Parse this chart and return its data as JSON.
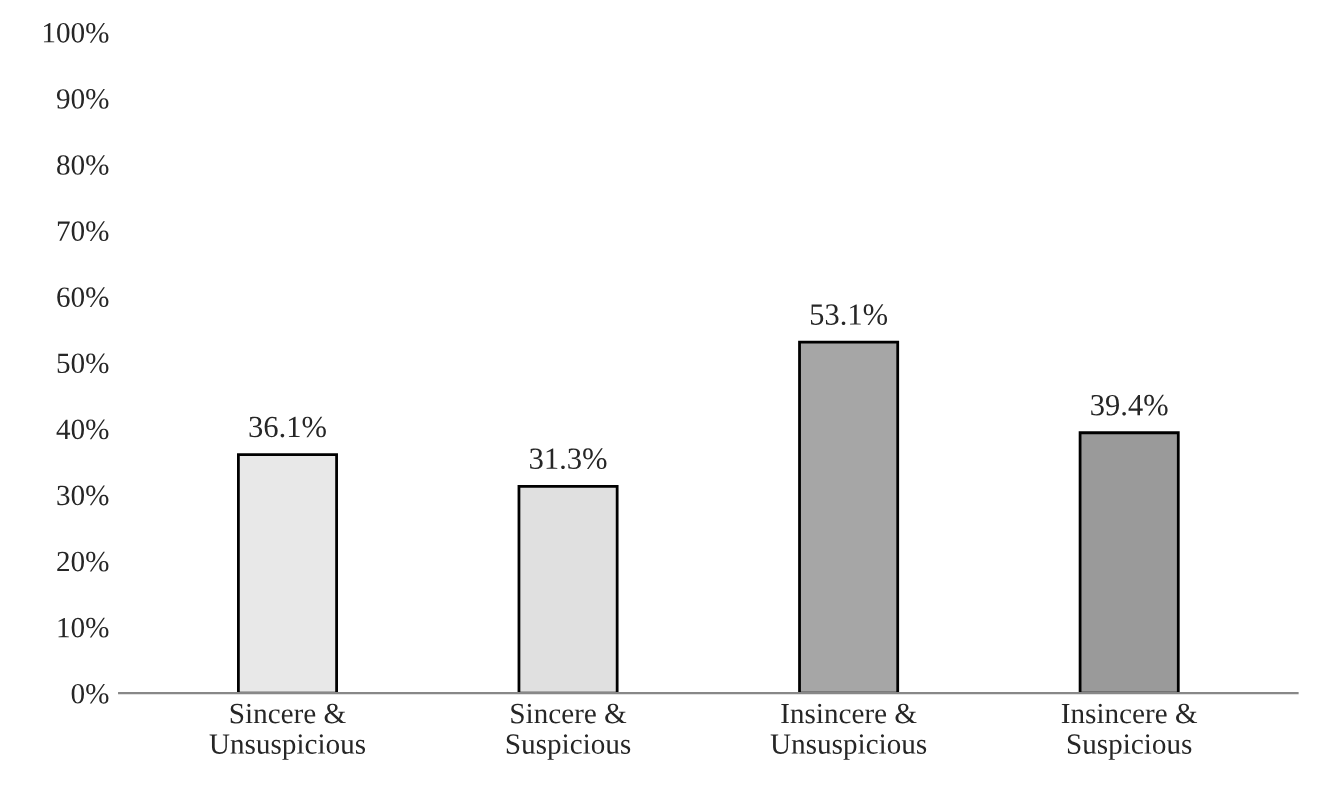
{
  "chart_data": {
    "type": "bar",
    "categories": [
      "Sincere &\nUnsuspicious",
      "Sincere &\nSuspicious",
      "Insincere &\nUnsuspicious",
      "Insincere &\nSuspicious"
    ],
    "values": [
      36.1,
      31.3,
      53.1,
      39.4
    ],
    "value_labels": [
      "36.1%",
      "31.3%",
      "53.1%",
      "39.4%"
    ],
    "colors": [
      "#e8e8e8",
      "#e0e0e0",
      "#a6a6a6",
      "#9a9a9a"
    ],
    "ylim": [
      0,
      100
    ],
    "yticks": [
      {
        "value": 0,
        "label": "0%"
      },
      {
        "value": 10,
        "label": "10%"
      },
      {
        "value": 20,
        "label": "20%"
      },
      {
        "value": 30,
        "label": "30%"
      },
      {
        "value": 40,
        "label": "40%"
      },
      {
        "value": 50,
        "label": "50%"
      },
      {
        "value": 60,
        "label": "60%"
      },
      {
        "value": 70,
        "label": "70%"
      },
      {
        "value": 80,
        "label": "80%"
      },
      {
        "value": 90,
        "label": "90%"
      },
      {
        "value": 100,
        "label": "100%"
      }
    ],
    "grid": false,
    "legend": false
  }
}
